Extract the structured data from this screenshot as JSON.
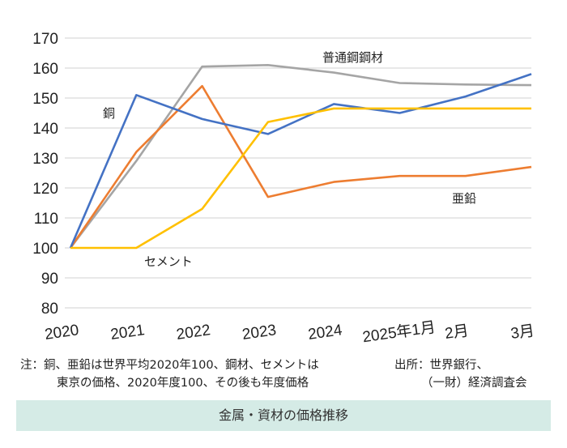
{
  "chart_data": {
    "type": "line",
    "categories": [
      "2020",
      "2021",
      "2022",
      "2023",
      "2024",
      "2025年1月",
      "2月",
      "3月"
    ],
    "ylim": [
      80,
      170
    ],
    "yticks": [
      80,
      90,
      100,
      110,
      120,
      130,
      140,
      150,
      160,
      170
    ],
    "grid": true,
    "series": [
      {
        "name": "銅",
        "color": "#4472c4",
        "values": [
          100,
          151,
          143,
          138,
          148,
          145,
          150.5,
          158
        ]
      },
      {
        "name": "亜鉛",
        "color": "#ed7d31",
        "values": [
          100,
          132,
          154,
          117,
          122,
          124,
          124,
          127
        ]
      },
      {
        "name": "普通鋼鋼材",
        "color": "#a5a5a5",
        "values": [
          100,
          129,
          160.5,
          161,
          158.5,
          155,
          154.5,
          154.3
        ]
      },
      {
        "name": "セメント",
        "color": "#ffc000",
        "values": [
          100,
          100,
          113,
          142,
          146.5,
          146.5,
          146.5,
          146.5
        ]
      }
    ]
  },
  "notes": {
    "note_line1": "注：銅、亜鉛は世界平均2020年100、鋼材、セメントは",
    "note_line2": "東京の価格、2020年度100、その後も年度価格",
    "source_line1": "出所：世界銀行、",
    "source_line2": "（一財）経済調査会"
  },
  "caption": "金属・資材の価格推移"
}
